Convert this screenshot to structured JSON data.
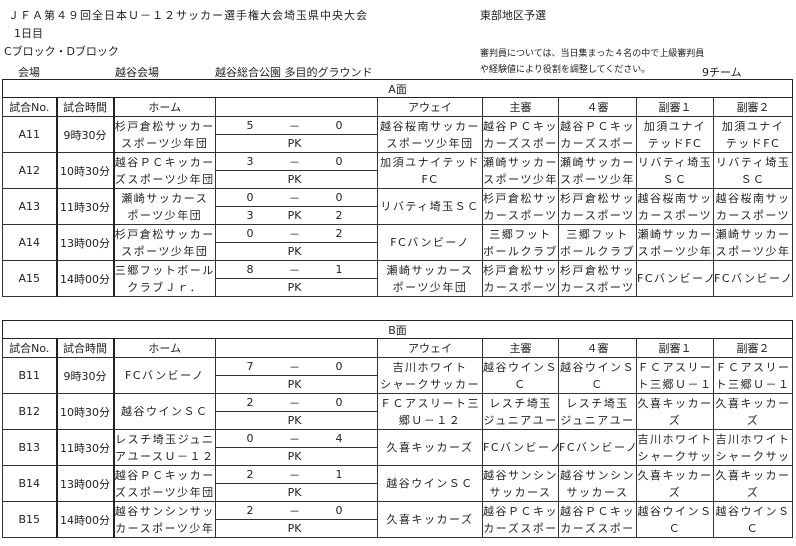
{
  "header": {
    "title": "ＪＦＡ第４９回全日本Ｕ－１２サッカー選手権大会埼玉県中央大会",
    "region": "東部地区予選",
    "day": "1日目",
    "blocks": "Cブロック・Dブロック",
    "venue_label": "会場",
    "venue_name": "越谷会場",
    "venue_place": "越谷総合公園 多目的グラウンド",
    "note_line1": "審判員については、当日集まった４名の中で上級審判員",
    "note_line2": "や経験値により役割を調整してください。",
    "teams": "9チーム"
  },
  "columns": {
    "no": "試合No.",
    "time": "試合時間",
    "home": "ホーム",
    "score": "",
    "away": "アウェイ",
    "ref_main": "主審",
    "ref_4th": "４審",
    "ref_a1": "副審１",
    "ref_a2": "副審２",
    "dash": "－",
    "pk": "PK"
  },
  "sections": [
    {
      "title": "A面",
      "matches": [
        {
          "no": "A11",
          "time": "9時30分",
          "home": [
            "杉戸倉松サッカー",
            "スポーツ少年団"
          ],
          "score_home": "5",
          "score_away": "0",
          "pk_home": "",
          "pk_away": "",
          "away": [
            "越谷桜南サッカー",
            "スポーツ少年団"
          ],
          "ref_main": [
            "越谷ＰＣキッ",
            "カーズスポー"
          ],
          "ref_4th": [
            "越谷ＰＣキッ",
            "カーズスポー"
          ],
          "ref_a1": [
            "加須ユナイ",
            "テッドFC"
          ],
          "ref_a2": [
            "加須ユナイ",
            "テッドFC"
          ]
        },
        {
          "no": "A12",
          "time": "10時30分",
          "home": [
            "越谷ＰＣキッカー",
            "ズスポーツ少年団"
          ],
          "score_home": "3",
          "score_away": "0",
          "pk_home": "",
          "pk_away": "",
          "away": [
            "加須ユナイテッド",
            "FC"
          ],
          "ref_main": [
            "瀬崎サッカー",
            "スポーツ少年"
          ],
          "ref_4th": [
            "瀬崎サッカー",
            "スポーツ少年"
          ],
          "ref_a1": [
            "リバティ埼玉",
            "ＳＣ"
          ],
          "ref_a2": [
            "リバティ埼玉",
            "ＳＣ"
          ]
        },
        {
          "no": "A13",
          "time": "11時30分",
          "home": [
            "瀬崎サッカース",
            "ポーツ少年団"
          ],
          "score_home": "0",
          "score_away": "0",
          "pk_home": "3",
          "pk_away": "2",
          "away": [
            "リバティ埼玉ＳＣ"
          ],
          "ref_main": [
            "杉戸倉松サッ",
            "カースポーツ"
          ],
          "ref_4th": [
            "杉戸倉松サッ",
            "カースポーツ"
          ],
          "ref_a1": [
            "越谷桜南サッ",
            "カースポーツ"
          ],
          "ref_a2": [
            "越谷桜南サッ",
            "カースポーツ"
          ]
        },
        {
          "no": "A14",
          "time": "13時00分",
          "home": [
            "杉戸倉松サッカー",
            "スポーツ少年団"
          ],
          "score_home": "0",
          "score_away": "2",
          "pk_home": "",
          "pk_away": "",
          "away": [
            "FCバンビーノ"
          ],
          "ref_main": [
            "三郷フット",
            "ボールクラブ"
          ],
          "ref_4th": [
            "三郷フット",
            "ボールクラブ"
          ],
          "ref_a1": [
            "瀬崎サッカー",
            "スポーツ少年"
          ],
          "ref_a2": [
            "瀬崎サッカー",
            "スポーツ少年"
          ]
        },
        {
          "no": "A15",
          "time": "14時00分",
          "home": [
            "三郷フットボール",
            "クラブＪｒ．"
          ],
          "score_home": "8",
          "score_away": "1",
          "pk_home": "",
          "pk_away": "",
          "away": [
            "瀬崎サッカース",
            "ポーツ少年団"
          ],
          "ref_main": [
            "杉戸倉松サッ",
            "カースポーツ"
          ],
          "ref_4th": [
            "杉戸倉松サッ",
            "カースポーツ"
          ],
          "ref_a1": [
            "FCバンビーノ"
          ],
          "ref_a2": [
            "FCバンビーノ"
          ]
        }
      ]
    },
    {
      "title": "B面",
      "matches": [
        {
          "no": "B11",
          "time": "9時30分",
          "home": [
            "FCバンビーノ"
          ],
          "score_home": "7",
          "score_away": "0",
          "pk_home": "",
          "pk_away": "",
          "away": [
            "吉川ホワイト",
            "シャークサッカー"
          ],
          "ref_main": [
            "越谷ウインＳ",
            "Ｃ"
          ],
          "ref_4th": [
            "越谷ウインＳ",
            "Ｃ"
          ],
          "ref_a1": [
            "ＦＣアスリー",
            "ト三郷Ｕ－１"
          ],
          "ref_a2": [
            "ＦＣアスリー",
            "ト三郷Ｕ－１"
          ]
        },
        {
          "no": "B12",
          "time": "10時30分",
          "home": [
            "越谷ウインＳＣ"
          ],
          "score_home": "2",
          "score_away": "0",
          "pk_home": "",
          "pk_away": "",
          "away": [
            "ＦＣアスリート三",
            "郷Ｕ－１２"
          ],
          "ref_main": [
            "レスチ埼玉",
            "ジュニアユー"
          ],
          "ref_4th": [
            "レスチ埼玉",
            "ジュニアユー"
          ],
          "ref_a1": [
            "久喜キッカー",
            "ズ"
          ],
          "ref_a2": [
            "久喜キッカー",
            "ズ"
          ]
        },
        {
          "no": "B13",
          "time": "11時30分",
          "home": [
            "レスチ埼玉ジュニ",
            "アユースＵ－１２"
          ],
          "score_home": "0",
          "score_away": "4",
          "pk_home": "",
          "pk_away": "",
          "away": [
            "久喜キッカーズ"
          ],
          "ref_main": [
            "FCバンビーノ"
          ],
          "ref_4th": [
            "FCバンビーノ"
          ],
          "ref_a1": [
            "吉川ホワイト",
            "シャークサッ"
          ],
          "ref_a2": [
            "吉川ホワイト",
            "シャークサッ"
          ]
        },
        {
          "no": "B14",
          "time": "13時00分",
          "home": [
            "越谷ＰＣキッカー",
            "ズスポーツ少年団"
          ],
          "score_home": "2",
          "score_away": "1",
          "pk_home": "",
          "pk_away": "",
          "away": [
            "越谷ウインＳＣ"
          ],
          "ref_main": [
            "越谷サンシン",
            "サッカース"
          ],
          "ref_4th": [
            "越谷サンシン",
            "サッカース"
          ],
          "ref_a1": [
            "久喜キッカー",
            "ズ"
          ],
          "ref_a2": [
            "久喜キッカー",
            "ズ"
          ]
        },
        {
          "no": "B15",
          "time": "14時00分",
          "home": [
            "越谷サンシンサッ",
            "カースポーツ少年"
          ],
          "score_home": "2",
          "score_away": "0",
          "pk_home": "",
          "pk_away": "",
          "away": [
            "久喜キッカーズ"
          ],
          "ref_main": [
            "越谷ＰＣキッ",
            "カーズスポー"
          ],
          "ref_4th": [
            "越谷ＰＣキッ",
            "カーズスポー"
          ],
          "ref_a1": [
            "越谷ウインＳ",
            "Ｃ"
          ],
          "ref_a2": [
            "越谷ウインＳ",
            "Ｃ"
          ]
        }
      ]
    }
  ]
}
